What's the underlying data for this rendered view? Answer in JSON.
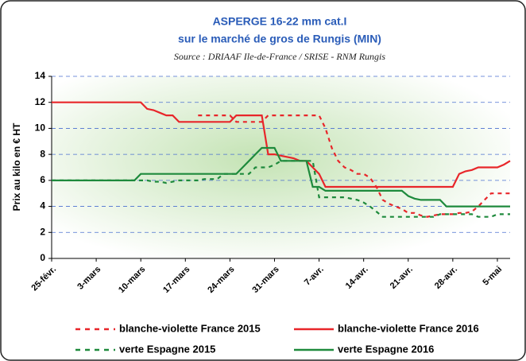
{
  "chart_data": {
    "type": "line",
    "title": "ASPERGE 16-22 mm cat.I",
    "subtitle": "sur le marché de gros de Rungis (MIN)",
    "source": "Source : DRIAAF Ile-de-France / SRISE - RNM Rungis",
    "y_label": "Prix au kilo en € HT",
    "categories": [
      "25-févr.",
      null,
      null,
      null,
      null,
      null,
      null,
      "3-mars",
      null,
      null,
      null,
      null,
      null,
      null,
      "10-mars",
      null,
      null,
      null,
      null,
      null,
      null,
      "17-mars",
      null,
      null,
      null,
      null,
      null,
      null,
      "24-mars",
      null,
      null,
      null,
      null,
      null,
      null,
      "31-mars",
      null,
      null,
      null,
      null,
      null,
      null,
      "7-avr.",
      null,
      null,
      null,
      null,
      null,
      null,
      "14-avr.",
      null,
      null,
      null,
      null,
      null,
      null,
      "21-avr.",
      null,
      null,
      null,
      null,
      null,
      null,
      "28-avr.",
      null,
      null,
      null,
      null,
      null,
      null,
      "5-mai",
      null,
      null
    ],
    "ylim": [
      0,
      14
    ],
    "yticks": [
      0,
      2,
      4,
      6,
      8,
      10,
      12,
      14
    ],
    "grid": true,
    "series": [
      {
        "name": "blanche-violette France 2015",
        "color": "#e8262a",
        "dashed": true,
        "values": [
          null,
          null,
          null,
          null,
          null,
          null,
          null,
          null,
          null,
          null,
          null,
          null,
          null,
          null,
          null,
          null,
          null,
          null,
          null,
          null,
          null,
          null,
          null,
          11,
          11,
          11,
          11,
          11,
          11,
          10.5,
          10.5,
          10.5,
          10.5,
          10.5,
          11,
          11,
          11,
          11,
          11,
          11,
          11,
          11,
          11,
          10,
          8.5,
          7.5,
          7,
          6.8,
          6.5,
          6.5,
          6.2,
          5.5,
          4.5,
          4.2,
          4,
          3.8,
          3.5,
          3.5,
          3.3,
          3.2,
          3.3,
          3.4,
          3.4,
          3.4,
          3.5,
          3.5,
          3.6,
          4,
          4.5,
          5,
          5,
          5,
          5
        ]
      },
      {
        "name": "blanche-violette France 2016",
        "color": "#e8262a",
        "dashed": false,
        "values": [
          12,
          12,
          12,
          12,
          12,
          12,
          12,
          12,
          12,
          12,
          12,
          12,
          12,
          12,
          12,
          11.5,
          11.4,
          11.2,
          11,
          11,
          10.5,
          10.5,
          10.5,
          10.5,
          10.5,
          10.5,
          10.5,
          10.5,
          10.5,
          11,
          11,
          11,
          11,
          11,
          8,
          8,
          7.9,
          7.8,
          7.7,
          7.5,
          7.5,
          7,
          6.5,
          5.5,
          5.5,
          5.5,
          5.5,
          5.5,
          5.5,
          5.5,
          5.5,
          5.5,
          5.5,
          5.5,
          5.5,
          5.5,
          5.5,
          5.5,
          5.5,
          5.5,
          5.5,
          5.5,
          5.5,
          5.5,
          6.5,
          6.7,
          6.8,
          7,
          7,
          7,
          7,
          7.2,
          7.5
        ]
      },
      {
        "name": "verte Espagne 2015",
        "color": "#1e8a3c",
        "dashed": true,
        "values": [
          6,
          6,
          6,
          6,
          6,
          6,
          6,
          6,
          6,
          6,
          6,
          6,
          6,
          6,
          6,
          6,
          5.9,
          5.9,
          5.8,
          5.9,
          6,
          6,
          6,
          6,
          6.1,
          6.1,
          6.1,
          6.5,
          6.5,
          6.5,
          6.5,
          6.5,
          7,
          7,
          7,
          7.2,
          7.5,
          7.5,
          7.5,
          7.5,
          7.5,
          7.5,
          4.7,
          4.7,
          4.7,
          4.7,
          4.7,
          4.6,
          4.5,
          4.3,
          4,
          3.6,
          3.2,
          3.2,
          3.2,
          3.2,
          3.2,
          3.2,
          3.2,
          3.2,
          3.2,
          3.4,
          3.4,
          3.4,
          3.4,
          3.4,
          3.4,
          3.2,
          3.2,
          3.2,
          3.4,
          3.4,
          3.4
        ]
      },
      {
        "name": "verte Espagne 2016",
        "color": "#1e8a3c",
        "dashed": false,
        "values": [
          6,
          6,
          6,
          6,
          6,
          6,
          6,
          6,
          6,
          6,
          6,
          6,
          6,
          6,
          6.5,
          6.5,
          6.5,
          6.5,
          6.5,
          6.5,
          6.5,
          6.5,
          6.5,
          6.5,
          6.5,
          6.5,
          6.5,
          6.5,
          6.5,
          6.5,
          7,
          7.5,
          8,
          8.5,
          8.5,
          8.5,
          7.5,
          7.5,
          7.5,
          7.5,
          7.5,
          5.5,
          5.5,
          5.2,
          5.2,
          5.2,
          5.2,
          5.2,
          5.2,
          5.2,
          5.2,
          5.2,
          5.2,
          5.2,
          5.2,
          5.2,
          4.8,
          4.6,
          4.5,
          4.5,
          4.5,
          4.5,
          4,
          4,
          4,
          4,
          4,
          4,
          4,
          4,
          4,
          4,
          4
        ]
      }
    ]
  }
}
